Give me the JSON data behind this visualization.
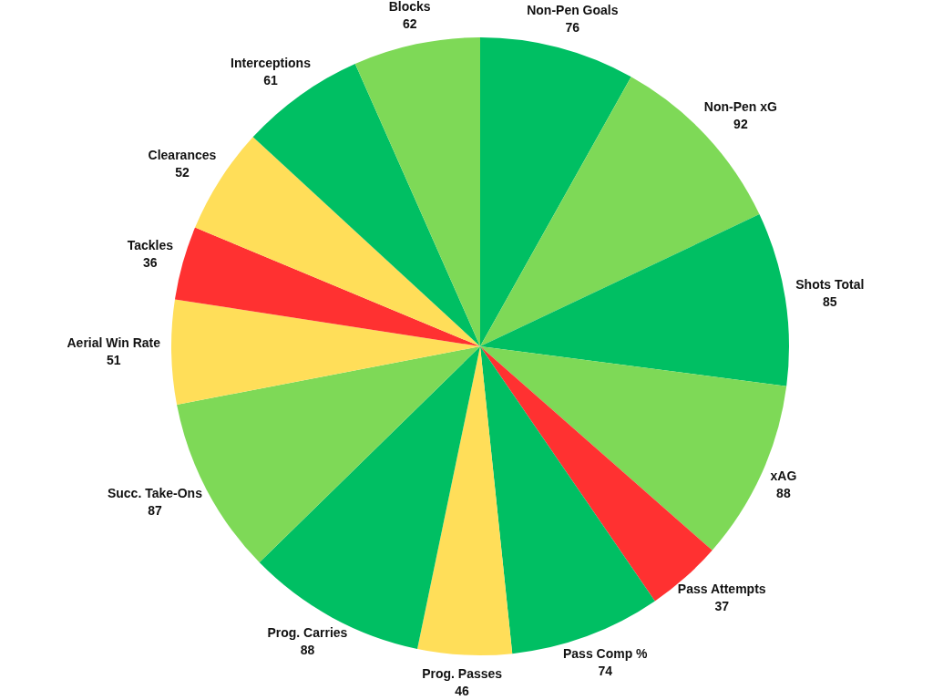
{
  "chart_data": {
    "type": "pie",
    "categories": [
      "Non-Pen Goals",
      "Non-Pen xG",
      "Shots Total",
      "xAG",
      "Pass Attempts",
      "Pass Comp %",
      "Prog. Passes",
      "Prog. Carries",
      "Succ. Take-Ons",
      "Aerial Win Rate",
      "Tackles",
      "Clearances",
      "Interceptions",
      "Blocks"
    ],
    "values": [
      76,
      92,
      85,
      88,
      37,
      74,
      46,
      88,
      87,
      51,
      36,
      52,
      61,
      62
    ],
    "colors": [
      "#00bf63",
      "#7ed957",
      "#00bf63",
      "#7ed957",
      "#ff3131",
      "#00bf63",
      "#ffde59",
      "#00bf63",
      "#7ed957",
      "#ffde59",
      "#ff3131",
      "#ffde59",
      "#00bf63",
      "#7ed957"
    ],
    "data_labels": true
  }
}
